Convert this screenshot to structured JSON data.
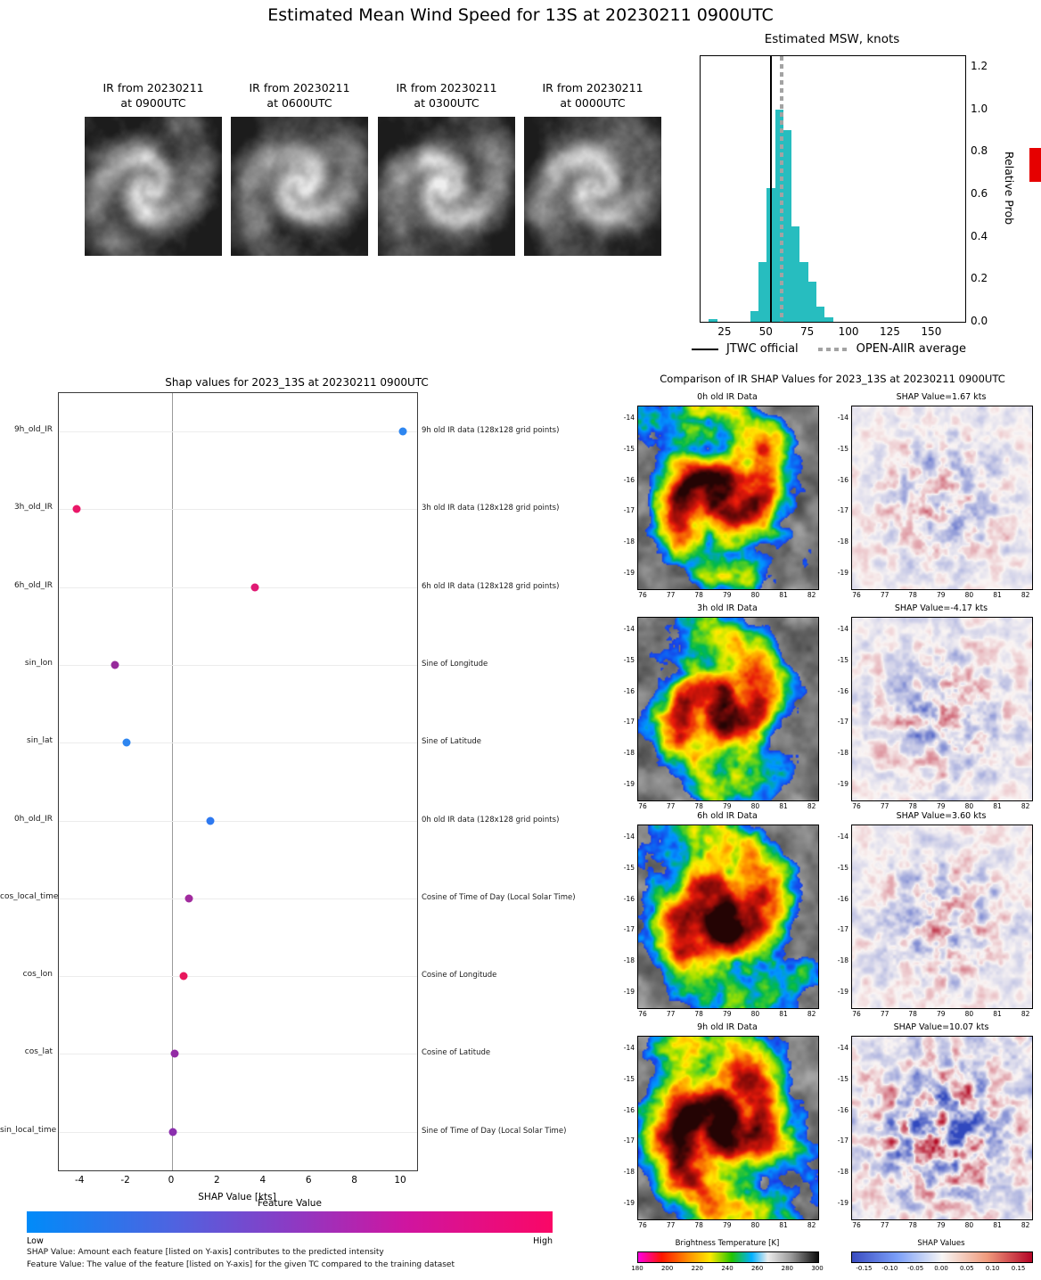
{
  "page_title": "Estimated Mean Wind Speed for 13S at 20230211 0900UTC",
  "ir_thumbnails": [
    {
      "line1": "IR from 20230211",
      "line2": "at 0900UTC"
    },
    {
      "line1": "IR from 20230211",
      "line2": "at 0600UTC"
    },
    {
      "line1": "IR from 20230211",
      "line2": "at 0300UTC"
    },
    {
      "line1": "IR from 20230211",
      "line2": "at 0000UTC"
    }
  ],
  "chart_data": [
    {
      "id": "msw_histogram",
      "type": "bar",
      "title": "Estimated MSW, knots",
      "ylabel": "Relative Prob",
      "xlim": [
        10,
        170
      ],
      "ylim": [
        0,
        1.25
      ],
      "xticks": [
        "25",
        "50",
        "75",
        "100",
        "125",
        "150"
      ],
      "xtick_values": [
        25,
        50,
        75,
        100,
        125,
        150
      ],
      "yticks": [
        "0.0",
        "0.2",
        "0.4",
        "0.6",
        "0.8",
        "1.0",
        "1.2"
      ],
      "ytick_values": [
        0.0,
        0.2,
        0.4,
        0.6,
        0.8,
        1.0,
        1.2
      ],
      "bin_width": 5,
      "bars": [
        {
          "x": 15,
          "h": 0.012
        },
        {
          "x": 40,
          "h": 0.05
        },
        {
          "x": 45,
          "h": 0.28
        },
        {
          "x": 50,
          "h": 0.63
        },
        {
          "x": 55,
          "h": 1.0
        },
        {
          "x": 60,
          "h": 0.9
        },
        {
          "x": 65,
          "h": 0.45
        },
        {
          "x": 70,
          "h": 0.28
        },
        {
          "x": 75,
          "h": 0.19
        },
        {
          "x": 80,
          "h": 0.07
        },
        {
          "x": 85,
          "h": 0.02
        }
      ],
      "bar_color": "#27bdbf",
      "jtwc_official_kts": 52,
      "open_aiir_average_kts": 58,
      "legend": [
        {
          "label": "JTWC official",
          "style": "solid-black-line"
        },
        {
          "label": "OPEN-AIIR average",
          "style": "dotted-gray-line"
        }
      ]
    },
    {
      "id": "shap_feature_plot",
      "type": "scatter",
      "title": "Shap values for 2023_13S at 20230211 0900UTC",
      "xlabel": "SHAP Value [kts]",
      "xlim": [
        -4.95,
        10.75
      ],
      "xticks": [
        "-4",
        "-2",
        "0",
        "2",
        "4",
        "6",
        "8",
        "10"
      ],
      "xtick_values": [
        -4,
        -2,
        0,
        2,
        4,
        6,
        8,
        10
      ],
      "features": [
        {
          "name": "9h_old_IR",
          "desc": "9h old IR data (128x128 grid points)",
          "shap": 10.07,
          "dot_color": "#2e86f0"
        },
        {
          "name": "3h_old_IR",
          "desc": "3h old IR data (128x128 grid points)",
          "shap": -4.17,
          "dot_color": "#ea1768"
        },
        {
          "name": "6h_old_IR",
          "desc": "6h old IR data (128x128 grid points)",
          "shap": 3.6,
          "dot_color": "#e01a74"
        },
        {
          "name": "sin_lon",
          "desc": "Sine of Longitude",
          "shap": -2.5,
          "dot_color": "#972a9b"
        },
        {
          "name": "sin_lat",
          "desc": "Sine of Latitude",
          "shap": -2.0,
          "dot_color": "#2e86f0"
        },
        {
          "name": "0h_old_IR",
          "desc": "0h old IR data (128x128 grid points)",
          "shap": 1.67,
          "dot_color": "#2e79f0"
        },
        {
          "name": "cos_local_time",
          "desc": "Cosine of Time of Day (Local Solar Time)",
          "shap": 0.75,
          "dot_color": "#a12b9e"
        },
        {
          "name": "cos_lon",
          "desc": "Cosine of Longitude",
          "shap": 0.5,
          "dot_color": "#e8175d"
        },
        {
          "name": "cos_lat",
          "desc": "Cosine of Latitude",
          "shap": 0.12,
          "dot_color": "#932ba5"
        },
        {
          "name": "sin_local_time",
          "desc": "Sine of Time of Day (Local Solar Time)",
          "shap": 0.05,
          "dot_color": "#8b2fae"
        }
      ],
      "colorbar": {
        "title": "Feature Value",
        "low_label": "Low",
        "high_label": "High",
        "gradient": [
          "#008bf9",
          "#8b3bc4",
          "#fa0766"
        ]
      },
      "footnotes": [
        "SHAP Value: Amount each feature [listed on Y-axis] contributes to the predicted intensity",
        "Feature Value: The value of the feature [listed on Y-axis] for the given TC compared to the training dataset"
      ]
    },
    {
      "id": "ir_shap_comparison",
      "type": "heatmap",
      "title": "Comparison of IR SHAP Values for 2023_13S at 20230211 0900UTC",
      "rows": [
        {
          "ir_title": "0h old IR Data",
          "shap_title": "SHAP Value=1.67 kts",
          "shap_kts": 1.67
        },
        {
          "ir_title": "3h old IR Data",
          "shap_title": "SHAP Value=-4.17 kts",
          "shap_kts": -4.17
        },
        {
          "ir_title": "6h old IR Data",
          "shap_title": "SHAP Value=3.60 kts",
          "shap_kts": 3.6
        },
        {
          "ir_title": "9h old IR Data",
          "shap_title": "SHAP Value=10.07 kts",
          "shap_kts": 10.07
        }
      ],
      "map_lon_range": [
        75.6,
        82.2
      ],
      "map_lat_range": [
        -19.7,
        -13.6
      ],
      "map_xticks": [
        "76",
        "77",
        "78",
        "79",
        "80",
        "81",
        "82"
      ],
      "map_xtick_values": [
        76,
        77,
        78,
        79,
        80,
        81,
        82
      ],
      "map_yticks": [
        "-14",
        "-15",
        "-16",
        "-17",
        "-18",
        "-19"
      ],
      "map_ytick_values": [
        -14,
        -15,
        -16,
        -17,
        -18,
        -19
      ],
      "bt_colorbar": {
        "title": "Brightness Temperature [K]",
        "ticks": [
          "180",
          "200",
          "220",
          "240",
          "260",
          "280",
          "300"
        ],
        "tick_values": [
          180,
          200,
          220,
          240,
          260,
          280,
          300
        ]
      },
      "shap_colorbar": {
        "title": "SHAP Values",
        "ticks": [
          "-0.15",
          "-0.10",
          "-0.05",
          "0.00",
          "0.05",
          "0.10",
          "0.15"
        ],
        "tick_values": [
          -0.15,
          -0.1,
          -0.05,
          0,
          0.05,
          0.1,
          0.15
        ]
      }
    }
  ]
}
